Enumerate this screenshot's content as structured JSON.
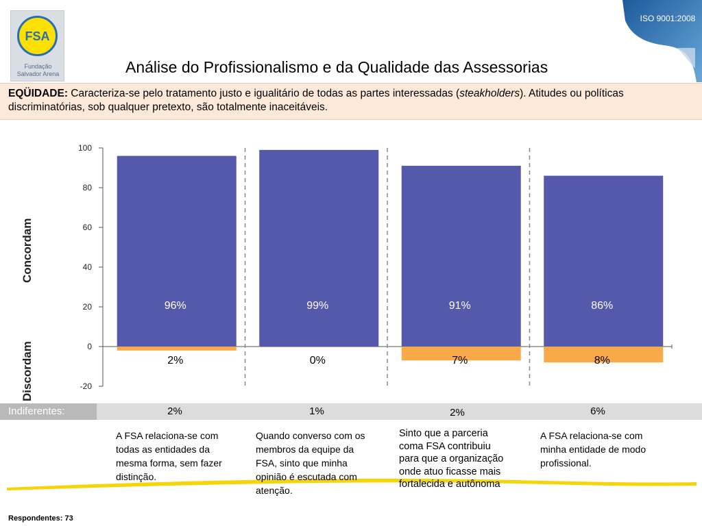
{
  "logo": {
    "mark": "FSA",
    "line1": "Fundação",
    "line2": "Salvador Arena"
  },
  "badge": {
    "text": "ISO 9001:2008"
  },
  "title": "Análise do Profissionalismo e da Qualidade das Assessorias",
  "equity": {
    "label": "EQÜIDADE:",
    "text_a": " Caracteriza-se pelo tratamento justo e igualitário de todas as partes interessadas (",
    "italic": "steakholders",
    "text_b": "). Atitudes ou políticas discriminatórias, sob qualquer pretexto, são totalmente inaceitáveis."
  },
  "chart_data": {
    "type": "bar",
    "categories": [
      "A FSA relaciona-se com todas as entidades da mesma forma, sem fazer distinção.",
      "Quando converso com os membros da equipe da FSA, sinto que minha opinião é escutada com atenção.",
      "Sinto que a parceria coma FSA contribuiu para que a organização onde atuo ficasse mais fortalecida e autônoma",
      "A FSA relaciona-se com minha entidade de modo profissional."
    ],
    "series": [
      {
        "name": "Concordam",
        "values": [
          96,
          99,
          91,
          86
        ],
        "labels": [
          "96%",
          "99%",
          "91%",
          "86%"
        ],
        "color": "#5459ab"
      },
      {
        "name": "Discordam",
        "values": [
          -2,
          0,
          -7,
          -8
        ],
        "labels": [
          "2%",
          "0%",
          "7%",
          "8%"
        ],
        "color": "#f8a94a"
      }
    ],
    "indifferent": {
      "name": "Indiferentes:",
      "labels": [
        "2%",
        "1%",
        "2%",
        "6%"
      ]
    },
    "ylim": [
      -20,
      100
    ],
    "yticks": [
      "100",
      "80",
      "60",
      "40",
      "20",
      "0",
      "-20"
    ],
    "ylabel_top": "Concordam",
    "ylabel_bottom": "Discordam"
  },
  "footer": {
    "respondents": "Respondentes: 73"
  }
}
